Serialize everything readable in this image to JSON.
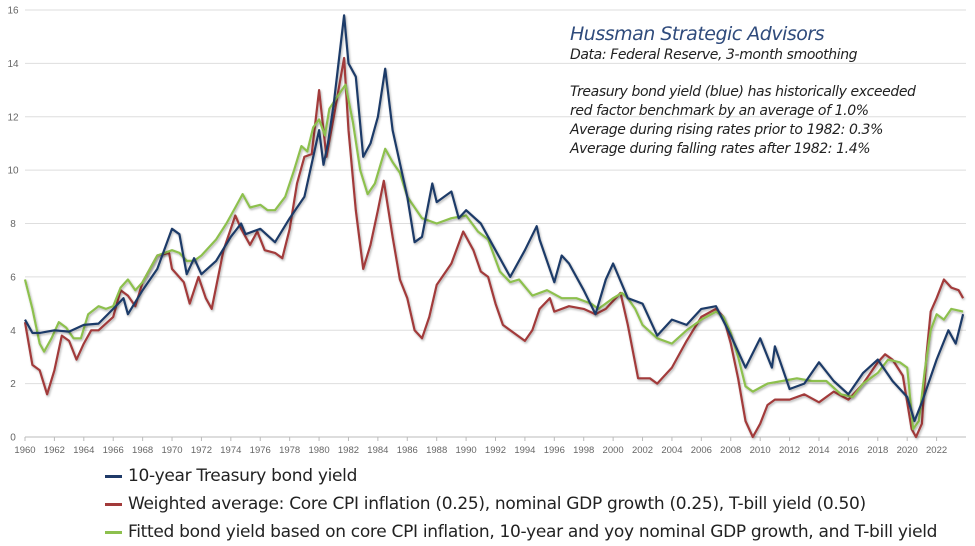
{
  "chart_data": {
    "type": "line",
    "title": "Hussman Strategic Advisors",
    "subtitle": "Data: Federal Reserve, 3-month smoothing",
    "annotations": [
      "Treasury bond yield (blue) has historically exceeded",
      "red factor benchmark by an average of 1.0%",
      "Average during rising rates prior to 1982: 0.3%",
      "Average during falling rates after 1982: 1.4%"
    ],
    "xlabel": "",
    "ylabel": "",
    "xlim": [
      1960,
      2024
    ],
    "ylim": [
      0,
      16
    ],
    "yticks": [
      "0",
      "2",
      "4",
      "6",
      "8",
      "10",
      "12",
      "14",
      "16"
    ],
    "xticks": [
      "1960",
      "1962",
      "1964",
      "1966",
      "1968",
      "1970",
      "1972",
      "1974",
      "1976",
      "1978",
      "1980",
      "1982",
      "1984",
      "1986",
      "1988",
      "1990",
      "1992",
      "1994",
      "1996",
      "1998",
      "2000",
      "2002",
      "2004",
      "2006",
      "2008",
      "2010",
      "2012",
      "2014",
      "2016",
      "2018",
      "2020",
      "2022"
    ],
    "grid": true,
    "legend_position": "bottom",
    "series": [
      {
        "name": "10-year Treasury bond yield",
        "color": "#1f3a68",
        "points": [
          [
            1960,
            4.4
          ],
          [
            1960.5,
            3.9
          ],
          [
            1961,
            3.9
          ],
          [
            1962,
            4.0
          ],
          [
            1963,
            3.95
          ],
          [
            1964,
            4.2
          ],
          [
            1965,
            4.25
          ],
          [
            1966,
            4.8
          ],
          [
            1966.7,
            5.2
          ],
          [
            1967,
            4.6
          ],
          [
            1968,
            5.5
          ],
          [
            1969,
            6.3
          ],
          [
            1970,
            7.8
          ],
          [
            1970.5,
            7.6
          ],
          [
            1971,
            6.1
          ],
          [
            1971.5,
            6.7
          ],
          [
            1972,
            6.1
          ],
          [
            1973,
            6.6
          ],
          [
            1974,
            7.5
          ],
          [
            1974.7,
            8.0
          ],
          [
            1975,
            7.6
          ],
          [
            1976,
            7.8
          ],
          [
            1977,
            7.3
          ],
          [
            1978,
            8.2
          ],
          [
            1979,
            9.0
          ],
          [
            1980,
            11.5
          ],
          [
            1980.3,
            10.2
          ],
          [
            1980.6,
            11.0
          ],
          [
            1981,
            12.5
          ],
          [
            1981.7,
            15.8
          ],
          [
            1982,
            14.0
          ],
          [
            1982.5,
            13.5
          ],
          [
            1983,
            10.5
          ],
          [
            1983.5,
            11.0
          ],
          [
            1984,
            12.0
          ],
          [
            1984.5,
            13.8
          ],
          [
            1985,
            11.5
          ],
          [
            1986,
            9.0
          ],
          [
            1986.5,
            7.3
          ],
          [
            1987,
            7.5
          ],
          [
            1987.7,
            9.5
          ],
          [
            1988,
            8.8
          ],
          [
            1989,
            9.2
          ],
          [
            1989.5,
            8.2
          ],
          [
            1990,
            8.5
          ],
          [
            1991,
            8.0
          ],
          [
            1992,
            7.0
          ],
          [
            1993,
            6.0
          ],
          [
            1994,
            7.0
          ],
          [
            1994.8,
            7.9
          ],
          [
            1995,
            7.4
          ],
          [
            1996,
            5.8
          ],
          [
            1996.5,
            6.8
          ],
          [
            1997,
            6.5
          ],
          [
            1998,
            5.5
          ],
          [
            1998.8,
            4.6
          ],
          [
            1999.5,
            5.9
          ],
          [
            2000,
            6.5
          ],
          [
            2001,
            5.2
          ],
          [
            2002,
            5.0
          ],
          [
            2003,
            3.8
          ],
          [
            2004,
            4.4
          ],
          [
            2005,
            4.2
          ],
          [
            2006,
            4.8
          ],
          [
            2007,
            4.9
          ],
          [
            2008,
            3.8
          ],
          [
            2009,
            2.6
          ],
          [
            2010,
            3.7
          ],
          [
            2010.8,
            2.6
          ],
          [
            2011,
            3.4
          ],
          [
            2012,
            1.8
          ],
          [
            2013,
            2.0
          ],
          [
            2014,
            2.8
          ],
          [
            2015,
            2.1
          ],
          [
            2016,
            1.6
          ],
          [
            2017,
            2.4
          ],
          [
            2018,
            2.9
          ],
          [
            2019,
            2.1
          ],
          [
            2020,
            1.5
          ],
          [
            2020.5,
            0.6
          ],
          [
            2021,
            1.3
          ],
          [
            2022,
            2.9
          ],
          [
            2022.8,
            4.0
          ],
          [
            2023.3,
            3.5
          ],
          [
            2023.8,
            4.6
          ]
        ]
      },
      {
        "name": "Weighted average: Core CPI inflation (0.25), nominal GDP growth (0.25), T-bill yield (0.50)",
        "color": "#a23a3a",
        "points": [
          [
            1960,
            4.3
          ],
          [
            1960.5,
            2.7
          ],
          [
            1961,
            2.5
          ],
          [
            1961.5,
            1.6
          ],
          [
            1962,
            2.5
          ],
          [
            1962.5,
            3.8
          ],
          [
            1963,
            3.6
          ],
          [
            1963.5,
            2.9
          ],
          [
            1964,
            3.5
          ],
          [
            1964.5,
            4.0
          ],
          [
            1965,
            4.0
          ],
          [
            1966,
            4.5
          ],
          [
            1966.5,
            5.5
          ],
          [
            1967,
            5.3
          ],
          [
            1967.5,
            4.9
          ],
          [
            1968,
            5.8
          ],
          [
            1969,
            6.8
          ],
          [
            1969.8,
            6.9
          ],
          [
            1970,
            6.3
          ],
          [
            1970.8,
            5.8
          ],
          [
            1971.2,
            5.0
          ],
          [
            1971.8,
            6.0
          ],
          [
            1972.3,
            5.2
          ],
          [
            1972.7,
            4.8
          ],
          [
            1973.5,
            7.0
          ],
          [
            1974.3,
            8.3
          ],
          [
            1974.7,
            7.8
          ],
          [
            1975.3,
            7.2
          ],
          [
            1975.8,
            7.7
          ],
          [
            1976.3,
            7.0
          ],
          [
            1977,
            6.9
          ],
          [
            1977.5,
            6.7
          ],
          [
            1978,
            7.8
          ],
          [
            1978.5,
            9.5
          ],
          [
            1979,
            10.5
          ],
          [
            1979.5,
            10.6
          ],
          [
            1980,
            13.0
          ],
          [
            1980.5,
            10.5
          ],
          [
            1981,
            12.0
          ],
          [
            1981.7,
            14.2
          ],
          [
            1982,
            11.5
          ],
          [
            1982.5,
            8.5
          ],
          [
            1983,
            6.3
          ],
          [
            1983.5,
            7.2
          ],
          [
            1984,
            8.5
          ],
          [
            1984.4,
            9.6
          ],
          [
            1985,
            7.5
          ],
          [
            1985.5,
            5.9
          ],
          [
            1986,
            5.2
          ],
          [
            1986.5,
            4.0
          ],
          [
            1987,
            3.7
          ],
          [
            1987.5,
            4.5
          ],
          [
            1988,
            5.7
          ],
          [
            1989,
            6.5
          ],
          [
            1989.8,
            7.7
          ],
          [
            1990.5,
            7.0
          ],
          [
            1991,
            6.2
          ],
          [
            1991.5,
            6.0
          ],
          [
            1992,
            5.0
          ],
          [
            1992.5,
            4.2
          ],
          [
            1993,
            4.0
          ],
          [
            1994,
            3.6
          ],
          [
            1994.5,
            4.0
          ],
          [
            1995,
            4.8
          ],
          [
            1995.7,
            5.2
          ],
          [
            1996,
            4.7
          ],
          [
            1997,
            4.9
          ],
          [
            1998,
            4.8
          ],
          [
            1998.8,
            4.6
          ],
          [
            1999.5,
            4.8
          ],
          [
            2000.5,
            5.4
          ],
          [
            2001,
            4.2
          ],
          [
            2001.7,
            2.2
          ],
          [
            2002.5,
            2.2
          ],
          [
            2003,
            2.0
          ],
          [
            2004,
            2.6
          ],
          [
            2005,
            3.6
          ],
          [
            2006,
            4.5
          ],
          [
            2007,
            4.8
          ],
          [
            2007.5,
            4.5
          ],
          [
            2008,
            3.5
          ],
          [
            2008.5,
            2.2
          ],
          [
            2009,
            0.6
          ],
          [
            2009.5,
            0.0
          ],
          [
            2010,
            0.5
          ],
          [
            2010.5,
            1.2
          ],
          [
            2011,
            1.4
          ],
          [
            2012,
            1.4
          ],
          [
            2013,
            1.6
          ],
          [
            2014,
            1.3
          ],
          [
            2015,
            1.7
          ],
          [
            2016,
            1.4
          ],
          [
            2017,
            2.0
          ],
          [
            2018,
            2.8
          ],
          [
            2018.5,
            3.1
          ],
          [
            2019,
            2.9
          ],
          [
            2019.7,
            2.3
          ],
          [
            2020.3,
            0.3
          ],
          [
            2020.6,
            0.0
          ],
          [
            2021,
            0.5
          ],
          [
            2021.3,
            3.0
          ],
          [
            2021.6,
            4.7
          ],
          [
            2022,
            5.2
          ],
          [
            2022.5,
            5.9
          ],
          [
            2023,
            5.6
          ],
          [
            2023.5,
            5.5
          ],
          [
            2023.8,
            5.2
          ]
        ]
      },
      {
        "name": "Fitted bond yield based on core CPI inflation, 10-year and yoy nominal GDP growth, and T-bill yield",
        "color": "#8dc04e",
        "points": [
          [
            1960,
            5.9
          ],
          [
            1960.5,
            4.8
          ],
          [
            1961,
            3.5
          ],
          [
            1961.3,
            3.2
          ],
          [
            1961.8,
            3.7
          ],
          [
            1962.3,
            4.3
          ],
          [
            1962.8,
            4.1
          ],
          [
            1963.3,
            3.7
          ],
          [
            1963.8,
            3.7
          ],
          [
            1964.3,
            4.6
          ],
          [
            1965,
            4.9
          ],
          [
            1965.5,
            4.8
          ],
          [
            1966,
            4.9
          ],
          [
            1966.5,
            5.6
          ],
          [
            1967,
            5.9
          ],
          [
            1967.5,
            5.5
          ],
          [
            1968,
            5.8
          ],
          [
            1969,
            6.8
          ],
          [
            1970,
            7.0
          ],
          [
            1970.5,
            6.9
          ],
          [
            1971,
            6.6
          ],
          [
            1971.5,
            6.6
          ],
          [
            1972,
            6.8
          ],
          [
            1973,
            7.4
          ],
          [
            1973.7,
            8.0
          ],
          [
            1974.3,
            8.6
          ],
          [
            1974.8,
            9.1
          ],
          [
            1975.3,
            8.6
          ],
          [
            1976,
            8.7
          ],
          [
            1976.5,
            8.5
          ],
          [
            1977,
            8.5
          ],
          [
            1977.7,
            9.0
          ],
          [
            1978.3,
            10.0
          ],
          [
            1978.8,
            10.9
          ],
          [
            1979.2,
            10.7
          ],
          [
            1979.6,
            11.6
          ],
          [
            1980,
            11.9
          ],
          [
            1980.4,
            11.3
          ],
          [
            1980.7,
            12.3
          ],
          [
            1981.3,
            12.8
          ],
          [
            1981.8,
            13.2
          ],
          [
            1982.3,
            11.8
          ],
          [
            1982.8,
            10.0
          ],
          [
            1983.3,
            9.1
          ],
          [
            1983.8,
            9.5
          ],
          [
            1984.5,
            10.8
          ],
          [
            1985,
            10.3
          ],
          [
            1985.5,
            9.9
          ],
          [
            1986,
            9.0
          ],
          [
            1987,
            8.2
          ],
          [
            1988,
            8.0
          ],
          [
            1989,
            8.2
          ],
          [
            1990,
            8.3
          ],
          [
            1990.8,
            7.7
          ],
          [
            1991.5,
            7.4
          ],
          [
            1992.3,
            6.2
          ],
          [
            1993,
            5.8
          ],
          [
            1993.6,
            5.9
          ],
          [
            1994.5,
            5.3
          ],
          [
            1995.5,
            5.5
          ],
          [
            1996.5,
            5.2
          ],
          [
            1997.5,
            5.2
          ],
          [
            1998.5,
            5.0
          ],
          [
            1999,
            4.8
          ],
          [
            2000,
            5.2
          ],
          [
            2000.6,
            5.4
          ],
          [
            2001,
            5.2
          ],
          [
            2001.5,
            4.8
          ],
          [
            2002,
            4.2
          ],
          [
            2003,
            3.7
          ],
          [
            2004,
            3.5
          ],
          [
            2005,
            4.0
          ],
          [
            2006,
            4.4
          ],
          [
            2007,
            4.7
          ],
          [
            2007.5,
            4.5
          ],
          [
            2008,
            3.9
          ],
          [
            2008.5,
            3.0
          ],
          [
            2009,
            1.9
          ],
          [
            2009.5,
            1.7
          ],
          [
            2010.5,
            2.0
          ],
          [
            2011.5,
            2.1
          ],
          [
            2012.5,
            2.2
          ],
          [
            2013.5,
            2.1
          ],
          [
            2014.5,
            2.1
          ],
          [
            2015.5,
            1.6
          ],
          [
            2016.3,
            1.5
          ],
          [
            2017,
            2.0
          ],
          [
            2018,
            2.4
          ],
          [
            2018.7,
            2.9
          ],
          [
            2019.5,
            2.8
          ],
          [
            2020,
            2.6
          ],
          [
            2020.4,
            0.3
          ],
          [
            2020.8,
            0.6
          ],
          [
            2021.2,
            2.5
          ],
          [
            2021.6,
            4.0
          ],
          [
            2022,
            4.6
          ],
          [
            2022.5,
            4.4
          ],
          [
            2023,
            4.8
          ],
          [
            2023.8,
            4.7
          ]
        ]
      }
    ]
  }
}
